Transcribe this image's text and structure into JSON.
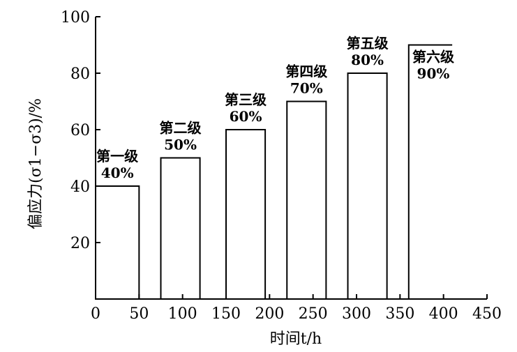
{
  "chart_data": {
    "type": "bar",
    "xlabel": "时间t/h",
    "ylabel": "偏应力(σ1−σ3)/%",
    "xlim": [
      0,
      450
    ],
    "ylim": [
      0,
      100
    ],
    "xticks": [
      "0",
      "50",
      "100",
      "150",
      "200",
      "250",
      "300",
      "350",
      "400",
      "450"
    ],
    "yticks": [
      "20",
      "40",
      "60",
      "80",
      "100"
    ],
    "grid": false,
    "bars": [
      {
        "stage": "第一级",
        "value_label": "40%",
        "x_start": 0,
        "x_end": 50,
        "value": 40
      },
      {
        "stage": "第二级",
        "value_label": "50%",
        "x_start": 75,
        "x_end": 120,
        "value": 50
      },
      {
        "stage": "第三级",
        "value_label": "60%",
        "x_start": 150,
        "x_end": 195,
        "value": 60
      },
      {
        "stage": "第四级",
        "value_label": "70%",
        "x_start": 220,
        "x_end": 265,
        "value": 70
      },
      {
        "stage": "第五级",
        "value_label": "80%",
        "x_start": 290,
        "x_end": 335,
        "value": 80
      },
      {
        "stage": "第六级",
        "value_label": "90%",
        "x_start": 360,
        "x_end": 410,
        "value": 90,
        "open": true
      }
    ]
  }
}
